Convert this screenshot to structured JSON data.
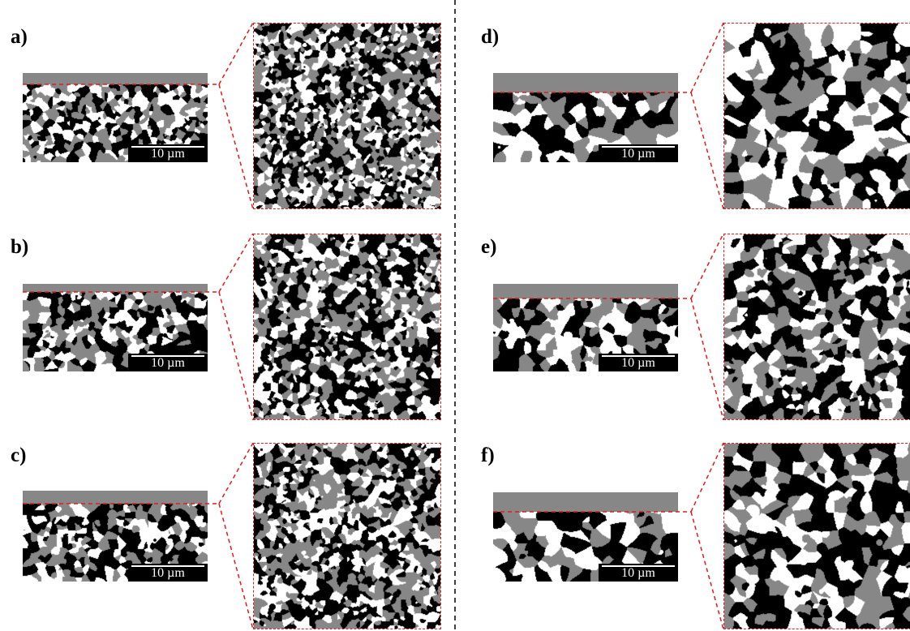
{
  "figure": {
    "colors": {
      "pore": "#000000",
      "phase_white": "#ffffff",
      "phase_gray": "#878787",
      "guide_line": "#e21b1b",
      "divider": "#000000"
    },
    "scale_label": "10 µm",
    "panels": [
      {
        "id": "a",
        "label": "a)",
        "grain": "fine",
        "cap": "thin"
      },
      {
        "id": "b",
        "label": "b)",
        "grain": "fine",
        "cap": "thin"
      },
      {
        "id": "c",
        "label": "c)",
        "grain": "fine",
        "cap": "thin"
      },
      {
        "id": "d",
        "label": "d)",
        "grain": "coarse",
        "cap": "thick"
      },
      {
        "id": "e",
        "label": "e)",
        "grain": "medium",
        "cap": "thick"
      },
      {
        "id": "f",
        "label": "f)",
        "grain": "coarse",
        "cap": "thick"
      }
    ]
  }
}
